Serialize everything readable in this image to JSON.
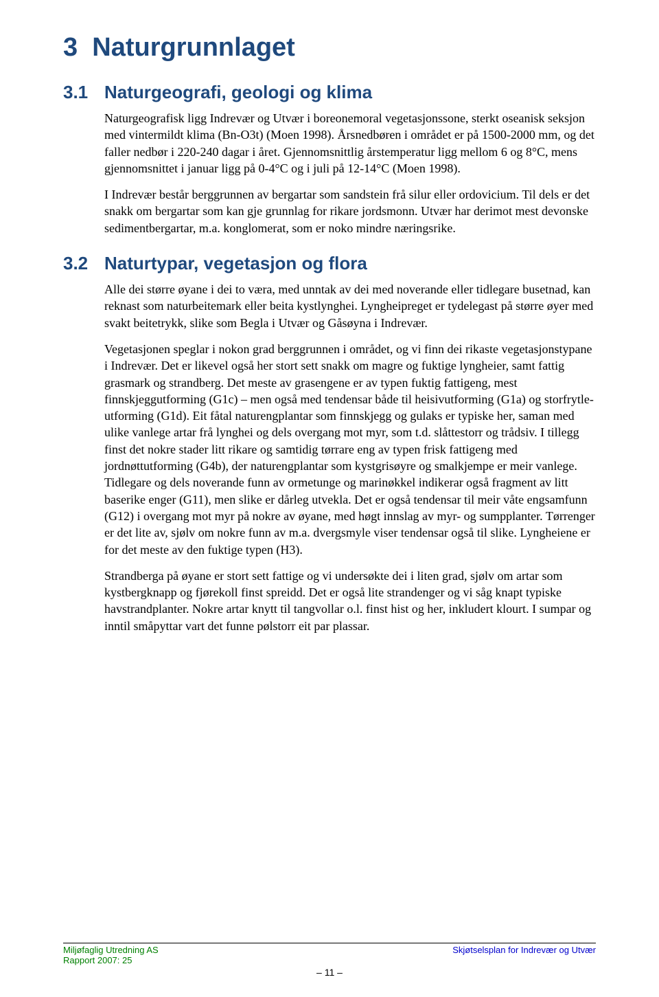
{
  "colors": {
    "heading": "#1f497d",
    "body": "#000000",
    "footer_left": "#008000",
    "footer_right": "#0000cc",
    "background": "#ffffff"
  },
  "typography": {
    "heading_font": "Arial",
    "body_font": "Times New Roman",
    "chapter_fontsize": 38,
    "section_fontsize": 26,
    "body_fontsize": 18,
    "footer_fontsize": 13
  },
  "chapter": {
    "number": "3",
    "title": "Naturgrunnlaget"
  },
  "sections": [
    {
      "number": "3.1",
      "title": "Naturgeografi, geologi og klima",
      "paragraphs": [
        "Naturgeografisk ligg Indrevær og Utvær i boreonemoral vegetasjonssone, sterkt oseanisk seksjon med vintermildt klima (Bn-O3t) (Moen 1998). Årsnedbøren i området er på 1500-2000 mm, og det faller nedbør i 220-240 dagar i året. Gjennomsnittlig årstemperatur ligg mellom 6 og 8°C, mens gjennomsnittet i januar ligg på 0-4°C og i juli på 12-14°C (Moen 1998).",
        "I Indrevær består berggrunnen av bergartar som sandstein frå silur eller ordovicium. Til dels er det snakk om bergartar som kan gje grunnlag for rikare jordsmonn. Utvær har derimot mest devonske sedimentbergartar, m.a. konglomerat, som er noko mindre næringsrike."
      ]
    },
    {
      "number": "3.2",
      "title": "Naturtypar, vegetasjon og flora",
      "paragraphs": [
        "Alle dei større øyane i dei to væra, med unntak av dei med noverande eller tidlegare busetnad, kan reknast som naturbeitemark eller beita kystlynghei. Lyngheipreget er tydelegast på større øyer med svakt beitetrykk, slike som Begla i Utvær og Gåsøyna i Indrevær.",
        "Vegetasjonen speglar i nokon grad berggrunnen i området, og vi finn dei rikaste vegetasjonstypane i Indrevær. Det er likevel også her stort sett snakk om magre og fuktige lyngheier, samt fattig grasmark og strandberg. Det meste av grasengene er av typen fuktig fattigeng, mest finnskjeggutforming (G1c) – men også med tendensar både til heisivutforming (G1a) og storfrytle-utforming (G1d). Eit fåtal naturengplantar som finnskjegg og gulaks er typiske her, saman med ulike vanlege artar frå lynghei og dels overgang mot myr, som t.d. slåttestorr og trådsiv. I tillegg finst det nokre stader litt rikare og samtidig tørrare eng av typen frisk fattigeng med jordnøttutforming (G4b), der naturengplantar som kystgrisøyre og smalkjempe er meir vanlege. Tidlegare og dels noverande funn av ormetunge og marinøkkel indikerar også fragment av litt baserike enger (G11), men slike er dårleg utvekla. Det er også tendensar til meir våte engsamfunn (G12) i overgang mot myr på nokre av øyane, med høgt innslag av myr- og sumpplanter. Tørrenger er det lite av, sjølv om nokre funn av m.a. dvergsmyle viser tendensar også til slike. Lyngheiene er for det meste av den fuktige typen (H3).",
        "Strandberga på øyane er stort sett fattige og vi undersøkte dei i liten grad, sjølv om artar som kystbergknapp og fjørekoll finst spreidd. Det er også lite strandenger og vi såg knapt typiske havstrandplanter. Nokre artar knytt til tangvollar o.l. finst hist og her, inkludert klourt. I sumpar og inntil småpyttar vart det funne pølstorr eit par plassar."
      ]
    }
  ],
  "footer": {
    "left_line1": "Miljøfaglig Utredning AS",
    "left_line2": "Rapport 2007: 25",
    "right": "Skjøtselsplan for Indrevær og Utvær",
    "page": "– 11 –"
  }
}
